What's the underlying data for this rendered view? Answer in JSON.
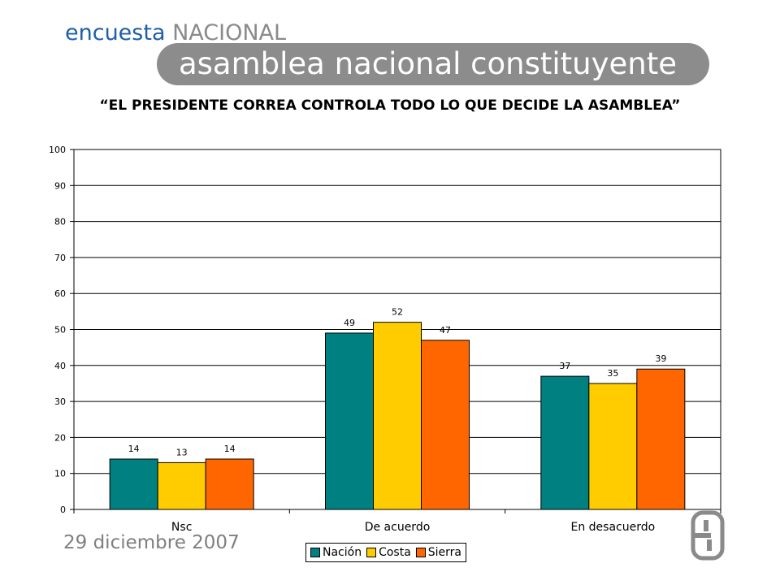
{
  "header": {
    "brand_prefix": "encuesta",
    "brand_suffix": "NACIONAL",
    "subtitle": "asamblea nacional constituyente"
  },
  "footer": {
    "date": "29 diciembre 2007"
  },
  "colors": {
    "brand_blue": "#1f5fa8",
    "pill_gray": "#8c8c8c",
    "date_gray": "#7f7f7f",
    "logo_gray": "#8a8a8a"
  },
  "logo": {
    "icon": "encuesta-brand-logo-icon"
  },
  "chart_data": {
    "type": "bar",
    "title": "“EL PRESIDENTE CORREA CONTROLA TODO LO QUE DECIDE LA ASAMBLEA”",
    "categories": [
      "Nsc",
      "De acuerdo",
      "En desacuerdo"
    ],
    "series": [
      {
        "name": "Nación",
        "color": "#008080",
        "values": [
          14,
          49,
          37
        ]
      },
      {
        "name": "Costa",
        "color": "#ffcc00",
        "values": [
          13,
          52,
          35
        ]
      },
      {
        "name": "Sierra",
        "color": "#ff6600",
        "values": [
          14,
          47,
          39
        ]
      }
    ],
    "ylim": [
      0,
      100
    ],
    "yticks": [
      0,
      10,
      20,
      30,
      40,
      50,
      60,
      70,
      80,
      90,
      100
    ],
    "grid": true,
    "legend_position": "bottom",
    "xlabel": "",
    "ylabel": ""
  }
}
